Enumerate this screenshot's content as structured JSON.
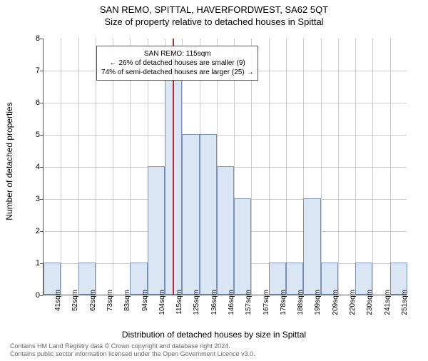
{
  "titles": {
    "line1": "SAN REMO, SPITTAL, HAVERFORDWEST, SA62 5QT",
    "line2": "Size of property relative to detached houses in Spittal"
  },
  "axes": {
    "ylabel": "Number of detached properties",
    "xlabel": "Distribution of detached houses by size in Spittal",
    "ylim": [
      0,
      8
    ],
    "ytick_step": 1,
    "label_fontsize": 12,
    "tick_fontsize": 11
  },
  "chart": {
    "type": "histogram",
    "categories": [
      "41sqm",
      "52sqm",
      "62sqm",
      "73sqm",
      "83sqm",
      "94sqm",
      "104sqm",
      "115sqm",
      "125sqm",
      "136sqm",
      "146sqm",
      "157sqm",
      "167sqm",
      "178sqm",
      "188sqm",
      "199sqm",
      "209sqm",
      "220sqm",
      "230sqm",
      "241sqm",
      "251sqm"
    ],
    "values": [
      1,
      0,
      1,
      0,
      0,
      1,
      4,
      7,
      5,
      5,
      4,
      3,
      0,
      1,
      1,
      3,
      1,
      0,
      1,
      0,
      1
    ],
    "bar_fill": "#dbe6f4",
    "bar_border": "#7a93b5",
    "bar_width": 1.0,
    "background_color": "#ffffff",
    "grid_color": "#cccccc",
    "reference_line": {
      "category_index": 7,
      "color": "#c1272d",
      "width": 2
    }
  },
  "annotation": {
    "line1": "SAN REMO: 115sqm",
    "line2": "← 26% of detached houses are smaller (9)",
    "line3": "74% of semi-detached houses are larger (25) →"
  },
  "footer": {
    "line1": "Contains HM Land Registry data © Crown copyright and database right 2024.",
    "line2": "Contains public sector information licensed under the Open Government Licence v3.0."
  }
}
